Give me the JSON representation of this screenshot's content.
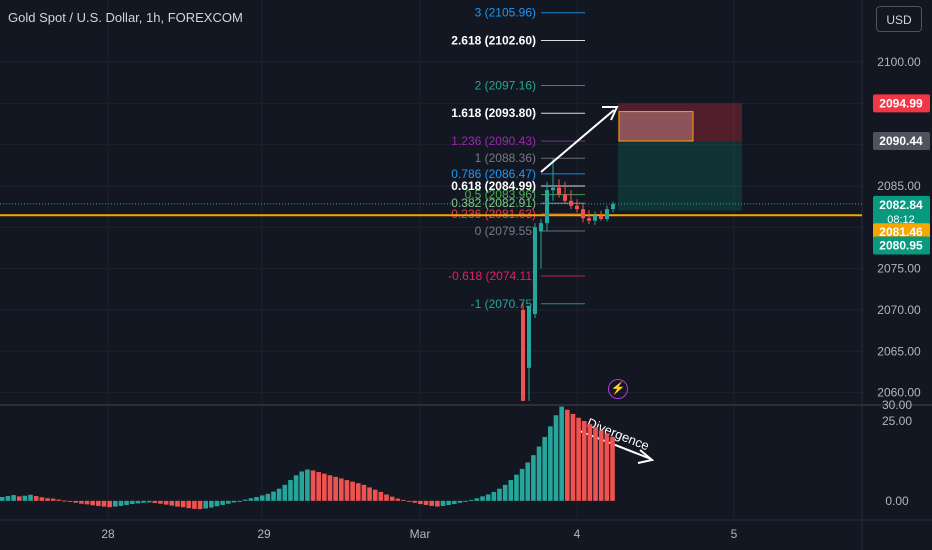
{
  "header": {
    "title": "Gold Spot / U.S. Dollar, 1h, FOREXCOM",
    "currency_button": "USD"
  },
  "colors": {
    "bg": "#131722",
    "grid": "#1e222d",
    "up": "#26a69a",
    "down": "#ef5350",
    "orange": "#f7a600",
    "white": "#e0e3eb"
  },
  "icons": {
    "alert": "lightning-icon"
  },
  "chart_data": [
    {
      "type": "candlestick",
      "title": "Gold Spot / U.S. Dollar, 1h, FOREXCOM",
      "ylim": [
        2058.5,
        2107.5
      ],
      "y_ticks": [
        "2060.00",
        "2065.00",
        "2070.00",
        "2075.00",
        "2080.00",
        "2085.00",
        "2090.00",
        "2095.00",
        "2100.00"
      ],
      "x_ticks": [
        "28",
        "29",
        "Mar",
        "4",
        "5"
      ],
      "price_labels": [
        {
          "label": "2094.99",
          "color": "#f23645"
        },
        {
          "label": "2090.44",
          "color": "#50535e"
        },
        {
          "label": "2082.84",
          "sub": "08:12",
          "color": "#089981"
        },
        {
          "label": "2081.46",
          "color": "#f7a600"
        },
        {
          "label": "2080.95",
          "color": "#089981"
        }
      ],
      "fibonacci": [
        {
          "label": "3 (2105.96)",
          "price": 2105.96,
          "color": "#2196f3"
        },
        {
          "label": "2.618 (2102.60)",
          "price": 2102.6,
          "color": "#ffffff"
        },
        {
          "label": "2 (2097.16)",
          "price": 2097.16,
          "color": "#26a69a"
        },
        {
          "label": "1.618 (2093.80)",
          "price": 2093.8,
          "color": "#ffffff"
        },
        {
          "label": "1.236 (2090.43)",
          "price": 2090.43,
          "color": "#9c27b0"
        },
        {
          "label": "1 (2088.36)",
          "price": 2088.36,
          "color": "#787b86"
        },
        {
          "label": "0.786 (2086.47)",
          "price": 2086.47,
          "color": "#2196f3"
        },
        {
          "label": "0.618 (2084.99)",
          "price": 2084.99,
          "color": "#ffffff"
        },
        {
          "label": "0.5 (2083.96)",
          "price": 2083.96,
          "color": "#4caf50"
        },
        {
          "label": "0.382 (2082.91)",
          "price": 2082.91,
          "color": "#81c784"
        },
        {
          "label": "0.236 (2081.63)",
          "price": 2081.63,
          "color": "#f23645"
        },
        {
          "label": "0 (2079.55)",
          "price": 2079.55,
          "color": "#787b86"
        },
        {
          "label": "-0.618 (2074.11)",
          "price": 2074.11,
          "color": "#e91e63"
        },
        {
          "label": "-1 (2070.75)",
          "price": 2070.75,
          "color": "#26a69a"
        }
      ],
      "horizontal_line": {
        "price": 2081.46,
        "color": "#f7a600"
      },
      "candles": [
        {
          "o": 2070.0,
          "h": 2071.0,
          "l": 2059.0,
          "c": 2059.0
        },
        {
          "o": 2063.0,
          "h": 2070.5,
          "l": 2059.0,
          "c": 2070.5
        },
        {
          "o": 2069.5,
          "h": 2080.5,
          "l": 2069.0,
          "c": 2080.0
        },
        {
          "o": 2079.5,
          "h": 2081.0,
          "l": 2075.0,
          "c": 2080.5
        },
        {
          "o": 2080.5,
          "h": 2085.5,
          "l": 2079.5,
          "c": 2084.5
        },
        {
          "o": 2084.5,
          "h": 2088.3,
          "l": 2083.2,
          "c": 2084.8
        },
        {
          "o": 2084.8,
          "h": 2085.8,
          "l": 2083.6,
          "c": 2084.0
        },
        {
          "o": 2084.0,
          "h": 2085.5,
          "l": 2082.8,
          "c": 2083.2
        },
        {
          "o": 2083.2,
          "h": 2084.5,
          "l": 2082.2,
          "c": 2082.6
        },
        {
          "o": 2082.6,
          "h": 2083.4,
          "l": 2081.8,
          "c": 2082.2
        },
        {
          "o": 2082.2,
          "h": 2082.9,
          "l": 2080.6,
          "c": 2081.1
        },
        {
          "o": 2081.1,
          "h": 2082.1,
          "l": 2080.4,
          "c": 2080.8
        },
        {
          "o": 2080.8,
          "h": 2081.9,
          "l": 2080.3,
          "c": 2081.4
        },
        {
          "o": 2081.4,
          "h": 2082.0,
          "l": 2080.8,
          "c": 2081.0
        },
        {
          "o": 2081.0,
          "h": 2082.6,
          "l": 2080.7,
          "c": 2082.2
        },
        {
          "o": 2082.2,
          "h": 2083.1,
          "l": 2081.8,
          "c": 2082.84
        }
      ],
      "position_box": {
        "entry": 2090.44,
        "stop": 2094.99,
        "target": 2082.0,
        "inner_top": 2094.0
      }
    },
    {
      "type": "histogram",
      "ylim": [
        -6,
        30
      ],
      "y_ticks": [
        "0.00",
        "25.00"
      ],
      "top_tick": "30.00",
      "annotation": "Divergence",
      "values": [
        1.2,
        1.5,
        1.8,
        1.4,
        1.6,
        1.9,
        1.5,
        1.1,
        0.8,
        0.7,
        0.4,
        0.1,
        -0.3,
        -0.6,
        -0.9,
        -1.1,
        -1.4,
        -1.6,
        -1.8,
        -2.0,
        -1.8,
        -1.6,
        -1.3,
        -1.0,
        -0.8,
        -0.6,
        -0.5,
        -0.7,
        -0.9,
        -1.2,
        -1.5,
        -1.8,
        -2.0,
        -2.3,
        -2.5,
        -2.6,
        -2.4,
        -2.1,
        -1.7,
        -1.3,
        -0.9,
        -0.5,
        -0.2,
        0.4,
        0.8,
        1.2,
        1.7,
        2.2,
        2.9,
        3.8,
        5.0,
        6.5,
        8.0,
        9.2,
        9.8,
        9.5,
        9.0,
        8.5,
        8.0,
        7.5,
        7.0,
        6.5,
        6.0,
        5.5,
        5.0,
        4.2,
        3.5,
        2.8,
        2.0,
        1.3,
        0.7,
        0.3,
        -0.2,
        -0.6,
        -1.0,
        -1.3,
        -1.6,
        -1.8,
        -1.6,
        -1.3,
        -1.0,
        -0.6,
        -0.2,
        0.3,
        0.8,
        1.4,
        2.0,
        2.8,
        3.8,
        5.0,
        6.5,
        8.2,
        10.0,
        12.0,
        14.3,
        17.0,
        20.0,
        23.3,
        26.8,
        29.5,
        28.5,
        27.2,
        26.0,
        25.0,
        24.0,
        23.0,
        22.0,
        21.0,
        20.0
      ],
      "colors": [
        "u",
        "u",
        "u",
        "d",
        "u",
        "u",
        "d",
        "d",
        "d",
        "d",
        "d",
        "d",
        "d",
        "d",
        "d",
        "d",
        "d",
        "d",
        "d",
        "d",
        "u",
        "u",
        "u",
        "u",
        "u",
        "u",
        "u",
        "d",
        "d",
        "d",
        "d",
        "d",
        "d",
        "d",
        "d",
        "d",
        "u",
        "u",
        "u",
        "u",
        "u",
        "u",
        "u",
        "u",
        "u",
        "u",
        "u",
        "u",
        "u",
        "u",
        "u",
        "u",
        "u",
        "u",
        "u",
        "d",
        "d",
        "d",
        "d",
        "d",
        "d",
        "d",
        "d",
        "d",
        "d",
        "d",
        "d",
        "d",
        "d",
        "d",
        "d",
        "d",
        "d",
        "d",
        "d",
        "d",
        "d",
        "d",
        "u",
        "u",
        "u",
        "u",
        "u",
        "u",
        "u",
        "u",
        "u",
        "u",
        "u",
        "u",
        "u",
        "u",
        "u",
        "u",
        "u",
        "u",
        "u",
        "u",
        "u",
        "u",
        "d",
        "d",
        "d",
        "d",
        "d",
        "d",
        "d",
        "d",
        "d"
      ]
    }
  ]
}
